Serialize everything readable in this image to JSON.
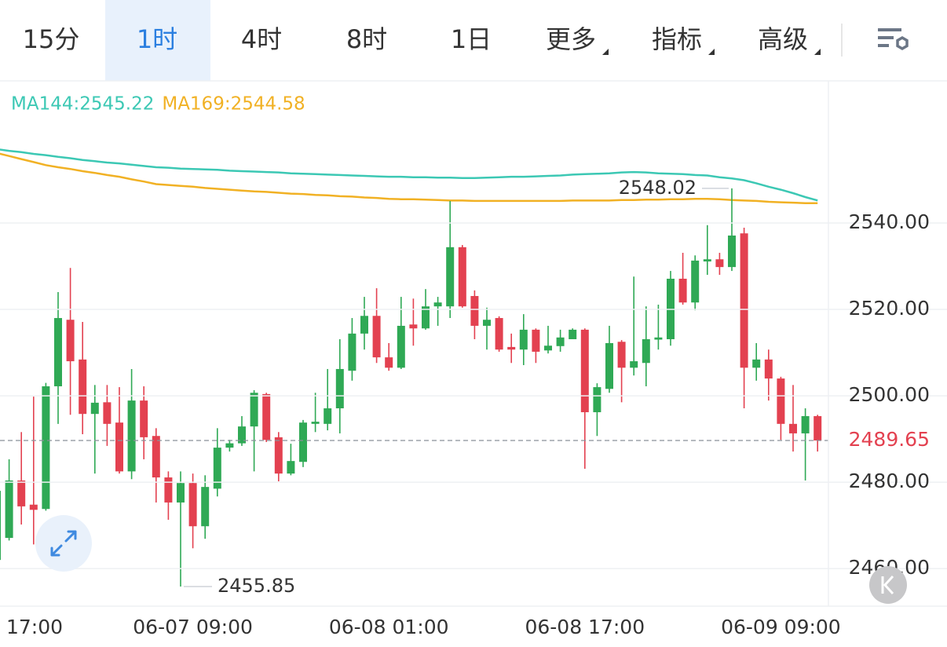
{
  "tabs": [
    "15分",
    "1时",
    "4时",
    "8时",
    "1日",
    "更多",
    "指标",
    "高级"
  ],
  "active_tab": 1,
  "chart_data": {
    "type": "candlestick",
    "categories": [
      "17:00",
      null,
      null,
      null,
      null,
      null,
      null,
      null,
      null,
      null,
      null,
      null,
      null,
      null,
      null,
      null,
      "06-07 09:00",
      null,
      null,
      null,
      null,
      null,
      null,
      null,
      null,
      null,
      null,
      null,
      null,
      null,
      null,
      null,
      "06-08 01:00",
      null,
      null,
      null,
      null,
      null,
      null,
      null,
      null,
      null,
      null,
      null,
      null,
      null,
      null,
      null,
      "06-08 17:00",
      null,
      null,
      null,
      null,
      null,
      null,
      null,
      null,
      null,
      null,
      null,
      null,
      null,
      null,
      null,
      "06-09 09:00",
      null,
      null,
      null
    ],
    "open": [
      2462,
      2467.1,
      2480.4,
      2474.8,
      2473.8,
      2502.2,
      2517.6,
      2508.4,
      2495.8,
      2498.5,
      2493.8,
      2482.5,
      2498.9,
      2490.7,
      2481.1,
      2475.3,
      2479.8,
      2469.8,
      2478.5,
      2488,
      2489.0,
      2492.9,
      2500.4,
      2490.4,
      2482,
      2484.7,
      2493.5,
      2493.5,
      2497.1,
      2505.8,
      2514.4,
      2518.5,
      2508.9,
      2506.5,
      2516.5,
      2515.6,
      2520.7,
      2520.7,
      2534.4,
      2523.1,
      2516.2,
      2518,
      2511.3,
      2510.7,
      2515.3,
      2510.5,
      2511.5,
      2513.1,
      2515.3,
      2496.2,
      2501.6,
      2512.5,
      2506.5,
      2507.6,
      2513,
      2513.1,
      2527.1,
      2521.6,
      2531.1,
      2531.6,
      2529.8,
      2537.6,
      2506.5,
      2508.4,
      2504,
      2493.5,
      2491.3,
      2495.3
    ],
    "high": [
      2480,
      2485.3,
      2491.6,
      2499.8,
      2503,
      2524.0,
      2529.6,
      2517.1,
      2502.5,
      2502.5,
      2502,
      2506.2,
      2502.2,
      2492.5,
      2482.5,
      2482.5,
      2482,
      2481.6,
      2492.5,
      2489.8,
      2495.3,
      2501.3,
      2500.7,
      2491.6,
      2488.9,
      2494.4,
      2500.7,
      2506.2,
      2513.1,
      2518,
      2522.9,
      2524.9,
      2512.2,
      2522.9,
      2522.5,
      2524.7,
      2522.9,
      2545.1,
      2534.9,
      2524.4,
      2520.4,
      2518.4,
      2514.4,
      2518.9,
      2515.6,
      2516.2,
      2515.3,
      2515.6,
      2515.6,
      2502.9,
      2516.2,
      2512.9,
      2527.6,
      2520.7,
      2521.1,
      2528.9,
      2533.1,
      2532.5,
      2539.5,
      2533.1,
      2548.02,
      2538.9,
      2512.2,
      2510.7,
      2504.4,
      2502.5,
      2497.1,
      2495.6
    ],
    "low": [
      2460,
      2466.5,
      2470.2,
      2465.6,
      2473.4,
      2493.5,
      2495.6,
      2491.1,
      2482,
      2488.4,
      2482,
      2480.7,
      2485.3,
      2475.3,
      2471.3,
      2455.85,
      2464.7,
      2466.9,
      2476.7,
      2487.1,
      2488.4,
      2482.5,
      2489.3,
      2480.2,
      2481.6,
      2483.5,
      2491.6,
      2492,
      2491.3,
      2503.5,
      2510.7,
      2507.6,
      2505.8,
      2506.2,
      2511.6,
      2515.3,
      2516.2,
      2518.0,
      2520.4,
      2513.1,
      2510.7,
      2510.2,
      2507.6,
      2507.1,
      2507.6,
      2509.8,
      2510.2,
      2513.1,
      2483.1,
      2490.7,
      2500.7,
      2498.5,
      2504.7,
      2502.2,
      2510.7,
      2511.6,
      2521.1,
      2519.8,
      2528,
      2528,
      2528.9,
      2497.1,
      2503.5,
      2498.9,
      2489.8,
      2487.1,
      2480.4,
      2487.1
    ],
    "close": [
      2478,
      2480.4,
      2474.4,
      2473.6,
      2502.2,
      2518.0,
      2508.0,
      2495.8,
      2498.4,
      2493.5,
      2482.5,
      2498.9,
      2490.4,
      2481.1,
      2475.3,
      2479.8,
      2469.8,
      2478.9,
      2488,
      2489,
      2492.9,
      2500.7,
      2489.8,
      2482,
      2484.9,
      2493.8,
      2494.0,
      2497.1,
      2506.2,
      2514.4,
      2518.5,
      2508.9,
      2506.5,
      2516.2,
      2515.6,
      2520.7,
      2521.6,
      2534.4,
      2520.7,
      2516.2,
      2517.6,
      2510.7,
      2510.7,
      2515.3,
      2510.2,
      2511.6,
      2513.5,
      2515.3,
      2496.2,
      2502,
      2512.2,
      2506.5,
      2508,
      2513.1,
      2513.5,
      2527.1,
      2521.6,
      2531.3,
      2531.6,
      2529.8,
      2537.1,
      2506.5,
      2508.4,
      2504,
      2493.5,
      2491.3,
      2495.3,
      2489.65
    ],
    "up_color": "#2fa955",
    "down_color": "#e34150",
    "series": [
      {
        "name": "MA144:2545.22",
        "color": "#3cc8b4",
        "values": [
          2557.1,
          2556.7,
          2556.4,
          2556.0,
          2555.7,
          2555.3,
          2555.0,
          2554.6,
          2554.3,
          2554.0,
          2553.8,
          2553.5,
          2553.2,
          2552.9,
          2552.8,
          2552.6,
          2552.5,
          2552.4,
          2552.3,
          2552.1,
          2552.0,
          2551.9,
          2551.8,
          2551.7,
          2551.5,
          2551.4,
          2551.3,
          2551.2,
          2551.1,
          2551.0,
          2550.9,
          2550.8,
          2550.7,
          2550.7,
          2550.6,
          2550.6,
          2550.5,
          2550.5,
          2550.4,
          2550.4,
          2550.5,
          2550.6,
          2550.7,
          2550.7,
          2550.8,
          2550.9,
          2551.0,
          2551.2,
          2551.3,
          2551.4,
          2551.5,
          2551.7,
          2551.8,
          2551.7,
          2551.5,
          2551.4,
          2551.3,
          2551.1,
          2551.0,
          2550.6,
          2550.3,
          2549.9,
          2549.2,
          2548.4,
          2547.7,
          2546.9,
          2546.0,
          2545.22
        ]
      },
      {
        "name": "MA169:2544.58",
        "color": "#f1b124",
        "values": [
          2556.2,
          2555.5,
          2554.8,
          2554.1,
          2553.4,
          2552.9,
          2552.5,
          2552.0,
          2551.6,
          2551.1,
          2550.7,
          2550.1,
          2549.6,
          2549.0,
          2548.8,
          2548.6,
          2548.4,
          2548.1,
          2547.9,
          2547.7,
          2547.5,
          2547.3,
          2547.2,
          2547.0,
          2546.8,
          2546.7,
          2546.5,
          2546.4,
          2546.2,
          2546.1,
          2545.9,
          2545.8,
          2545.6,
          2545.5,
          2545.5,
          2545.4,
          2545.3,
          2545.2,
          2545.2,
          2545.1,
          2545.1,
          2545.1,
          2545.1,
          2545.1,
          2545.1,
          2545.1,
          2545.1,
          2545.2,
          2545.2,
          2545.2,
          2545.2,
          2545.3,
          2545.3,
          2545.4,
          2545.4,
          2545.5,
          2545.5,
          2545.6,
          2545.6,
          2545.5,
          2545.3,
          2545.2,
          2545.1,
          2544.9,
          2544.8,
          2544.7,
          2544.6,
          2544.58
        ]
      }
    ],
    "ylim": [
      2451.3,
      2572.9
    ],
    "yticks": [
      {
        "value": 2460,
        "label": "2460.00"
      },
      {
        "value": 2480,
        "label": "2480.00"
      },
      {
        "value": 2500,
        "label": "2500.00"
      },
      {
        "value": 2520,
        "label": "2520.00"
      },
      {
        "value": 2540,
        "label": "2540.00"
      }
    ],
    "grid": true,
    "last_price_color": "#e34150"
  }
}
